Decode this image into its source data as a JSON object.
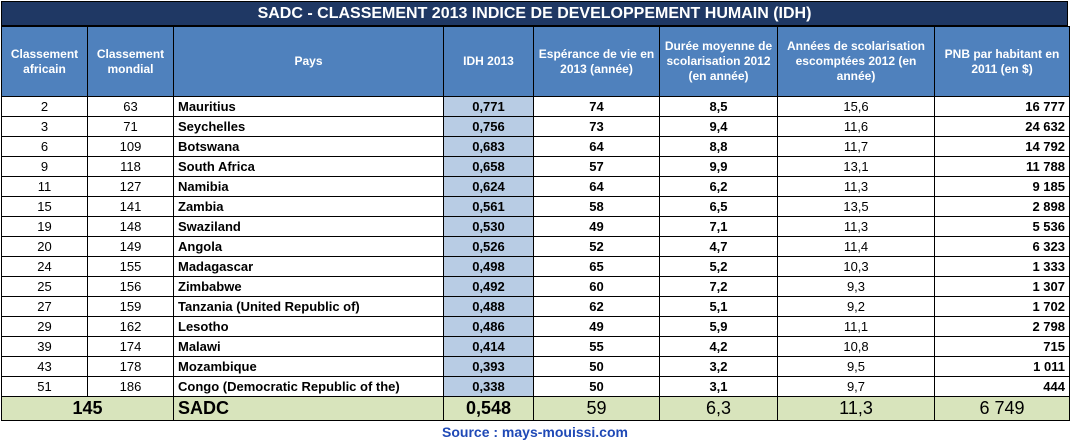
{
  "title": "SADC - CLASSEMENT 2013 INDICE DE DEVELOPPEMENT HUMAIN (IDH)",
  "headers": [
    "Classement africain",
    "Classement mondial",
    "Pays",
    "IDH 2013",
    "Espérance de vie en 2013 (année)",
    "Durée moyenne de scolarisation 2012 (en année)",
    "Années de scolarisation escomptées 2012 (en année)",
    "PNB par habitant en 2011 (en $)"
  ],
  "rows": [
    [
      "2",
      "63",
      "Mauritius",
      "0,771",
      "74",
      "8,5",
      "15,6",
      "16 777"
    ],
    [
      "3",
      "71",
      "Seychelles",
      "0,756",
      "73",
      "9,4",
      "11,6",
      "24 632"
    ],
    [
      "6",
      "109",
      "Botswana",
      "0,683",
      "64",
      "8,8",
      "11,7",
      "14 792"
    ],
    [
      "9",
      "118",
      "South Africa",
      "0,658",
      "57",
      "9,9",
      "13,1",
      "11 788"
    ],
    [
      "11",
      "127",
      "Namibia",
      "0,624",
      "64",
      "6,2",
      "11,3",
      "9 185"
    ],
    [
      "15",
      "141",
      "Zambia",
      "0,561",
      "58",
      "6,5",
      "13,5",
      "2 898"
    ],
    [
      "19",
      "148",
      "Swaziland",
      "0,530",
      "49",
      "7,1",
      "11,3",
      "5 536"
    ],
    [
      "20",
      "149",
      "Angola",
      "0,526",
      "52",
      "4,7",
      "11,4",
      "6 323"
    ],
    [
      "24",
      "155",
      "Madagascar",
      "0,498",
      "65",
      "5,2",
      "10,3",
      "1 333"
    ],
    [
      "25",
      "156",
      "Zimbabwe",
      "0,492",
      "60",
      "7,2",
      "9,3",
      "1 307"
    ],
    [
      "27",
      "159",
      "Tanzania (United Republic of)",
      "0,488",
      "62",
      "5,1",
      "9,2",
      "1 702"
    ],
    [
      "29",
      "162",
      "Lesotho",
      "0,486",
      "49",
      "5,9",
      "11,1",
      "2 798"
    ],
    [
      "39",
      "174",
      "Malawi",
      "0,414",
      "55",
      "4,2",
      "10,8",
      "715"
    ],
    [
      "43",
      "178",
      "Mozambique",
      "0,393",
      "50",
      "3,2",
      "9,5",
      "1 011"
    ],
    [
      "51",
      "186",
      "Congo (Democratic Republic of the)",
      "0,338",
      "50",
      "3,1",
      "9,7",
      "444"
    ]
  ],
  "footer": {
    "rank": "145",
    "name": "SADC",
    "idh": "0,548",
    "life": "59",
    "school_mean": "6,3",
    "school_expected": "11,3",
    "gnp": "6 749"
  },
  "source": "Source : mays-mouissi.com"
}
